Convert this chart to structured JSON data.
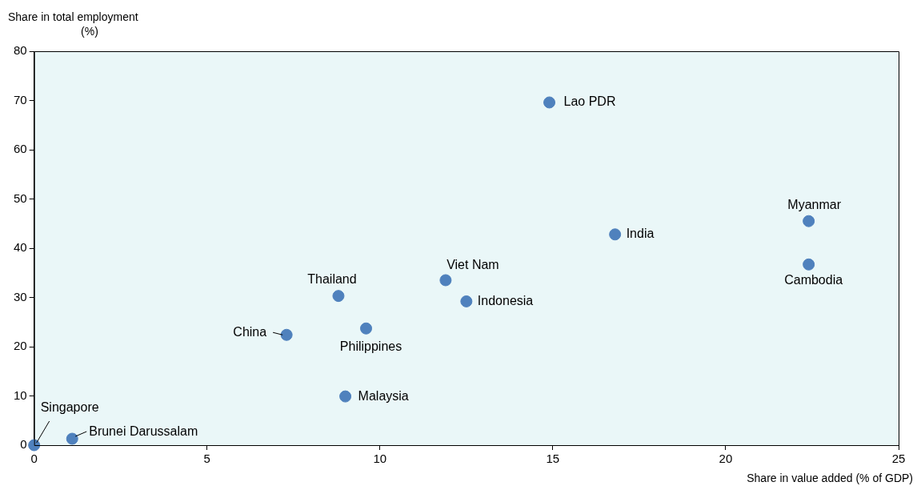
{
  "chart_data": {
    "type": "scatter",
    "xlabel": "Share in value added (% of GDP)",
    "ylabel": "Share in total employment\n(%)",
    "x": [
      0,
      1.1,
      7.3,
      8.8,
      9.6,
      9,
      11.9,
      12.5,
      14.9,
      16.8,
      22.4,
      22.4
    ],
    "series": [
      {
        "color": "#4f81bd",
        "values": [
          0,
          1.3,
          22.4,
          30.3,
          23.7,
          9.9,
          33.5,
          29.2,
          69.6,
          42.8,
          45.5,
          36.7
        ]
      }
    ],
    "annotations": [
      {
        "text": "Singapore",
        "x": 0,
        "y": 0
      },
      {
        "text": "Brunei Darussalam",
        "x": 1.1,
        "y": 1.3
      },
      {
        "text": "China",
        "x": 7.3,
        "y": 22.4
      },
      {
        "text": "Thailand",
        "x": 8.8,
        "y": 30.3
      },
      {
        "text": "Philippines",
        "x": 9.6,
        "y": 23.7
      },
      {
        "text": "Malaysia",
        "x": 9,
        "y": 9.9
      },
      {
        "text": "Viet Nam",
        "x": 11.9,
        "y": 33.5
      },
      {
        "text": "Indonesia",
        "x": 12.5,
        "y": 29.2
      },
      {
        "text": "Lao PDR",
        "x": 14.9,
        "y": 69.6
      },
      {
        "text": "India",
        "x": 16.8,
        "y": 42.8
      },
      {
        "text": "Myanmar",
        "x": 22.4,
        "y": 45.5
      },
      {
        "text": "Cambodia",
        "x": 22.4,
        "y": 36.7
      }
    ],
    "xlim": [
      0,
      25
    ],
    "xticks": [
      0,
      5,
      10,
      15,
      20,
      25
    ],
    "ylim": [
      0,
      80
    ],
    "yticks": [
      0,
      10,
      20,
      30,
      40,
      50,
      60,
      70,
      80
    ],
    "grid": false,
    "legend": false,
    "marker": "circle"
  }
}
